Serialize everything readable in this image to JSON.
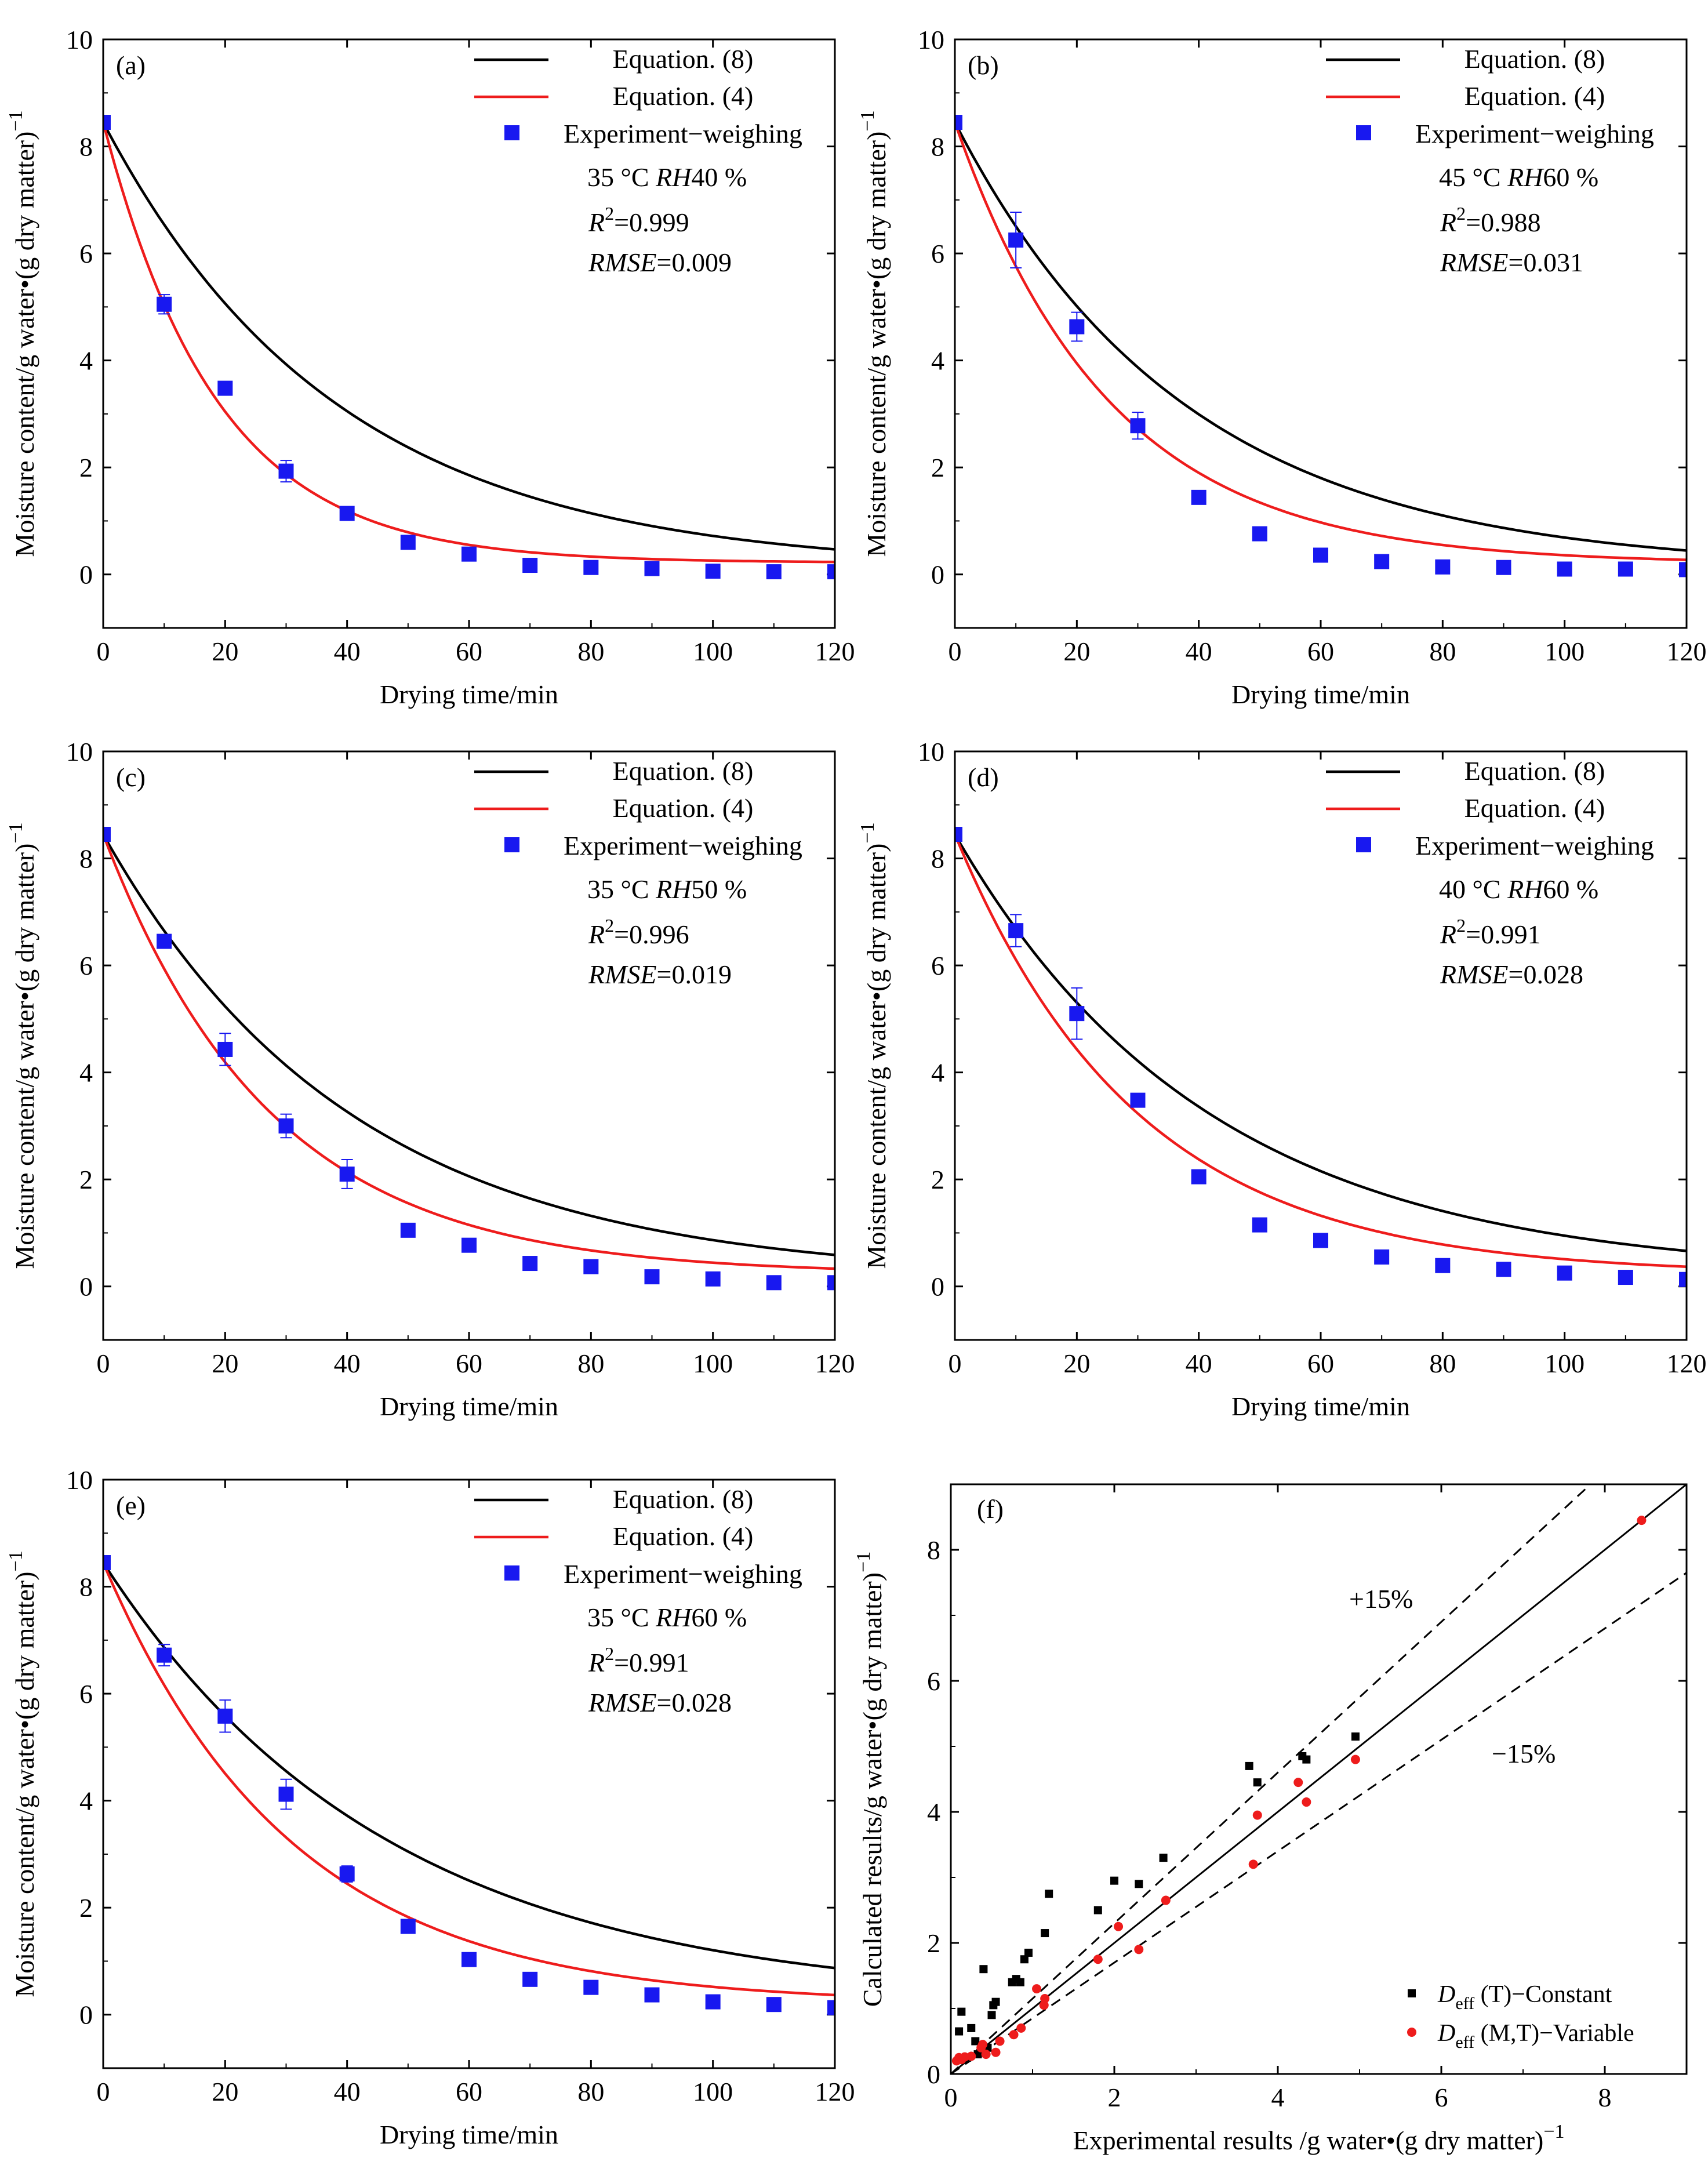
{
  "chart_data": [
    {
      "panel": "(a)",
      "type": "line",
      "xlabel": "Drying time/min",
      "ylabel": "Moisture content/g water•(g dry matter)",
      "ylabel_sup": "−1",
      "xlim": [
        0,
        120
      ],
      "ylim": [
        -1,
        10
      ],
      "xticks": [
        0,
        20,
        40,
        60,
        80,
        100,
        120
      ],
      "yticks": [
        0,
        2,
        4,
        6,
        8,
        10
      ],
      "legend": [
        "Equation. (8)",
        "Equation. (4)",
        "Experiment−weighing"
      ],
      "condition": "35 °C RH40 %",
      "condition_parts": {
        "temp": "35 °C ",
        "rh_label": "RH",
        "rh_value": "40 %"
      },
      "r2_value": "0.999",
      "rmse_value": "0.009",
      "eq8": {
        "M0": 8.45,
        "Me": 0.1,
        "k": 0.026
      },
      "eq4": {
        "M0": 8.45,
        "Me": 0.22,
        "k": 0.0535
      },
      "series": [
        {
          "name": "Experiment−weighing",
          "x": [
            0,
            10,
            20,
            30,
            40,
            50,
            60,
            70,
            80,
            90,
            100,
            110,
            120
          ],
          "values": [
            8.45,
            5.05,
            3.48,
            1.93,
            1.14,
            0.6,
            0.38,
            0.17,
            0.13,
            0.11,
            0.06,
            0.05,
            0.05
          ],
          "err": [
            0,
            0.18,
            0,
            0.2,
            0,
            0,
            0,
            0,
            0,
            0,
            0,
            0,
            0
          ]
        }
      ]
    },
    {
      "panel": "(b)",
      "type": "line",
      "xlabel": "Drying time/min",
      "ylabel": "Moisture content/g water•(g dry matter)",
      "ylabel_sup": "−1",
      "xlim": [
        0,
        120
      ],
      "ylim": [
        -1,
        10
      ],
      "xticks": [
        0,
        20,
        40,
        60,
        80,
        100,
        120
      ],
      "yticks": [
        0,
        2,
        4,
        6,
        8,
        10
      ],
      "legend": [
        "Equation. (8)",
        "Equation. (4)",
        "Experiment−weighing"
      ],
      "condition": "45 °C RH60 %",
      "condition_parts": {
        "temp": "45 °C ",
        "rh_label": "RH",
        "rh_value": "60 %"
      },
      "r2_value": "0.988",
      "rmse_value": "0.031",
      "eq8": {
        "M0": 8.45,
        "Me": 0.1,
        "k": 0.0265
      },
      "eq4": {
        "M0": 8.45,
        "Me": 0.2,
        "k": 0.0395
      },
      "series": [
        {
          "name": "Experiment−weighing",
          "x": [
            0,
            10,
            20,
            30,
            40,
            50,
            60,
            70,
            80,
            90,
            100,
            110,
            120
          ],
          "values": [
            8.45,
            6.25,
            4.63,
            2.78,
            1.44,
            0.76,
            0.36,
            0.24,
            0.14,
            0.13,
            0.1,
            0.1,
            0.09
          ],
          "err": [
            0,
            0.52,
            0.27,
            0.25,
            0.1,
            0,
            0,
            0,
            0,
            0,
            0,
            0,
            0
          ]
        }
      ]
    },
    {
      "panel": "(c)",
      "type": "line",
      "xlabel": "Drying time/min",
      "ylabel": "Moisture content/g water•(g dry matter)",
      "ylabel_sup": "−1",
      "xlim": [
        0,
        120
      ],
      "ylim": [
        -1,
        10
      ],
      "xticks": [
        0,
        20,
        40,
        60,
        80,
        100,
        120
      ],
      "yticks": [
        0,
        2,
        4,
        6,
        8,
        10
      ],
      "legend": [
        "Equation. (8)",
        "Equation. (4)",
        "Experiment−weighing"
      ],
      "condition": "35 °C RH50 %",
      "condition_parts": {
        "temp": "35 °C ",
        "rh_label": "RH",
        "rh_value": "50 %"
      },
      "r2_value": "0.996",
      "rmse_value": "0.019",
      "eq8": {
        "M0": 8.45,
        "Me": 0.15,
        "k": 0.0245
      },
      "eq4": {
        "M0": 8.45,
        "Me": 0.23,
        "k": 0.0365
      },
      "series": [
        {
          "name": "Experiment−weighing",
          "x": [
            0,
            10,
            20,
            30,
            40,
            50,
            60,
            70,
            80,
            90,
            100,
            110,
            120
          ],
          "values": [
            8.45,
            6.45,
            4.43,
            3.0,
            2.1,
            1.05,
            0.77,
            0.43,
            0.37,
            0.18,
            0.14,
            0.07,
            0.07
          ],
          "err": [
            0,
            0.08,
            0.3,
            0.22,
            0.27,
            0,
            0,
            0,
            0,
            0,
            0,
            0,
            0
          ]
        }
      ]
    },
    {
      "panel": "(d)",
      "type": "line",
      "xlabel": "Drying time/min",
      "ylabel": "Moisture content/g water•(g dry matter)",
      "ylabel_sup": "−1",
      "xlim": [
        0,
        120
      ],
      "ylim": [
        -1,
        10
      ],
      "xticks": [
        0,
        20,
        40,
        60,
        80,
        100,
        120
      ],
      "yticks": [
        0,
        2,
        4,
        6,
        8,
        10
      ],
      "legend": [
        "Equation. (8)",
        "Equation. (4)",
        "Experiment−weighing"
      ],
      "condition": "40 °C RH60 %",
      "condition_parts": {
        "temp": "40 °C ",
        "rh_label": "RH",
        "rh_value": "60 %"
      },
      "r2_value": "0.991",
      "rmse_value": "0.028",
      "eq8": {
        "M0": 8.45,
        "Me": 0.2,
        "k": 0.024
      },
      "eq4": {
        "M0": 8.45,
        "Me": 0.22,
        "k": 0.0335
      },
      "series": [
        {
          "name": "Experiment−weighing",
          "x": [
            0,
            10,
            20,
            30,
            40,
            50,
            60,
            70,
            80,
            90,
            100,
            110,
            120
          ],
          "values": [
            8.45,
            6.65,
            5.1,
            3.48,
            2.05,
            1.15,
            0.86,
            0.55,
            0.39,
            0.32,
            0.25,
            0.17,
            0.13
          ],
          "err": [
            0,
            0.3,
            0.48,
            0.1,
            0,
            0,
            0,
            0,
            0,
            0,
            0,
            0,
            0
          ]
        }
      ]
    },
    {
      "panel": "(e)",
      "type": "line",
      "xlabel": "Drying time/min",
      "ylabel": "Moisture content/g water•(g dry matter)",
      "ylabel_sup": "−1",
      "xlim": [
        0,
        120
      ],
      "ylim": [
        -1,
        10
      ],
      "xticks": [
        0,
        20,
        40,
        60,
        80,
        100,
        120
      ],
      "yticks": [
        0,
        2,
        4,
        6,
        8,
        10
      ],
      "legend": [
        "Equation. (8)",
        "Equation. (4)",
        "Experiment−weighing"
      ],
      "condition": "35 °C RH60 %",
      "condition_parts": {
        "temp": "35 °C ",
        "rh_label": "RH",
        "rh_value": "60 %"
      },
      "r2_value": "0.991",
      "rmse_value": "0.028",
      "eq8": {
        "M0": 8.45,
        "Me": 0.25,
        "k": 0.0215
      },
      "eq4": {
        "M0": 8.45,
        "Me": 0.2,
        "k": 0.0325
      },
      "series": [
        {
          "name": "Experiment−weighing",
          "x": [
            0,
            10,
            20,
            30,
            40,
            50,
            60,
            70,
            80,
            90,
            100,
            110,
            120
          ],
          "values": [
            8.45,
            6.72,
            5.58,
            4.12,
            2.63,
            1.65,
            1.03,
            0.66,
            0.51,
            0.37,
            0.24,
            0.19,
            0.13
          ],
          "err": [
            0,
            0.2,
            0.3,
            0.28,
            0.15,
            0,
            0,
            0,
            0,
            0,
            0,
            0,
            0
          ]
        }
      ]
    },
    {
      "panel": "(f)",
      "type": "scatter",
      "xlabel": "Experimental results /g water•(g dry matter)",
      "xlabel_sup": "−1",
      "ylabel": "Calculated results/g water•(g dry matter)",
      "ylabel_sup": "−1",
      "xlim": [
        0,
        9
      ],
      "ylim": [
        0,
        9
      ],
      "xticks": [
        0,
        2,
        4,
        6,
        8
      ],
      "yticks": [
        0,
        2,
        4,
        6,
        8
      ],
      "band_labels": [
        "+15%",
        "−15%"
      ],
      "legend_items": [
        {
          "symbol": "D",
          "sub": "eff",
          "arg": " (T)−Constant"
        },
        {
          "symbol": "D",
          "sub": "eff",
          "arg": " (M,T)−Variable"
        }
      ],
      "series": [
        {
          "name": "Deff (T)−Constant",
          "x": [
            0.1,
            0.13,
            0.2,
            0.25,
            0.3,
            0.33,
            0.4,
            0.45,
            0.5,
            0.52,
            0.55,
            0.75,
            0.8,
            0.85,
            0.9,
            0.95,
            1.15,
            1.2,
            1.8,
            2.0,
            2.3,
            2.6,
            3.65,
            3.75,
            4.3,
            4.35,
            4.95
          ],
          "values": [
            0.65,
            0.95,
            0.25,
            0.7,
            0.5,
            0.3,
            1.6,
            0.4,
            0.9,
            1.05,
            1.1,
            1.4,
            1.45,
            1.4,
            1.75,
            1.85,
            2.15,
            2.75,
            2.5,
            2.95,
            2.9,
            3.3,
            4.7,
            4.45,
            4.85,
            4.8,
            5.15
          ]
        },
        {
          "name": "Deff (M,T)−Variable",
          "x": [
            0.07,
            0.1,
            0.13,
            0.17,
            0.25,
            0.37,
            0.39,
            0.43,
            0.55,
            0.6,
            0.77,
            0.86,
            1.05,
            1.14,
            1.15,
            1.8,
            2.05,
            2.3,
            2.63,
            3.7,
            3.75,
            4.25,
            4.35,
            4.95,
            8.45
          ],
          "values": [
            0.2,
            0.25,
            0.22,
            0.26,
            0.27,
            0.4,
            0.45,
            0.3,
            0.33,
            0.5,
            0.6,
            0.7,
            1.3,
            1.05,
            1.15,
            1.75,
            2.25,
            1.9,
            2.65,
            3.2,
            3.95,
            4.45,
            4.15,
            4.8,
            8.45
          ]
        }
      ]
    }
  ]
}
